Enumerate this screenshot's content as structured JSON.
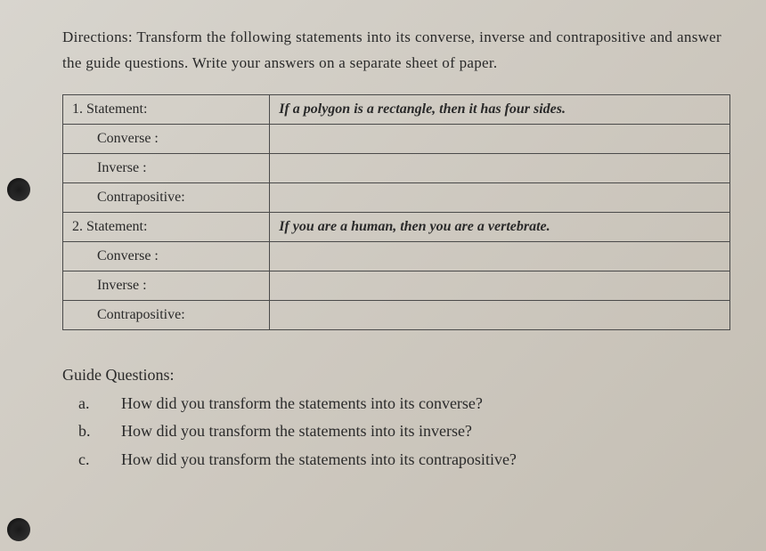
{
  "directions": "Directions: Transform the following statements into its converse, inverse and contrapositive and answer the guide questions. Write your answers on a separate sheet of paper.",
  "table": {
    "rows": [
      {
        "label": "1. Statement:",
        "indent": false,
        "value": "If a polygon is a rectangle, then it has four sides.",
        "bold": true
      },
      {
        "label": "Converse :",
        "indent": true,
        "value": "",
        "bold": false
      },
      {
        "label": "Inverse :",
        "indent": true,
        "value": "",
        "bold": false
      },
      {
        "label": "Contrapositive:",
        "indent": true,
        "value": "",
        "bold": false
      },
      {
        "label": "2. Statement:",
        "indent": false,
        "value": "If you are a human, then you are a vertebrate.",
        "bold": true
      },
      {
        "label": "Converse :",
        "indent": true,
        "value": "",
        "bold": false
      },
      {
        "label": "Inverse :",
        "indent": true,
        "value": "",
        "bold": false
      },
      {
        "label": "Contrapositive:",
        "indent": true,
        "value": "",
        "bold": false
      }
    ]
  },
  "guide": {
    "heading": "Guide Questions:",
    "items": [
      {
        "marker": "a.",
        "text": "How did you transform the statements into its converse?"
      },
      {
        "marker": "b.",
        "text": "How did you transform the statements into its inverse?"
      },
      {
        "marker": "c.",
        "text": "How did you transform the statements into its contrapositive?"
      }
    ]
  }
}
